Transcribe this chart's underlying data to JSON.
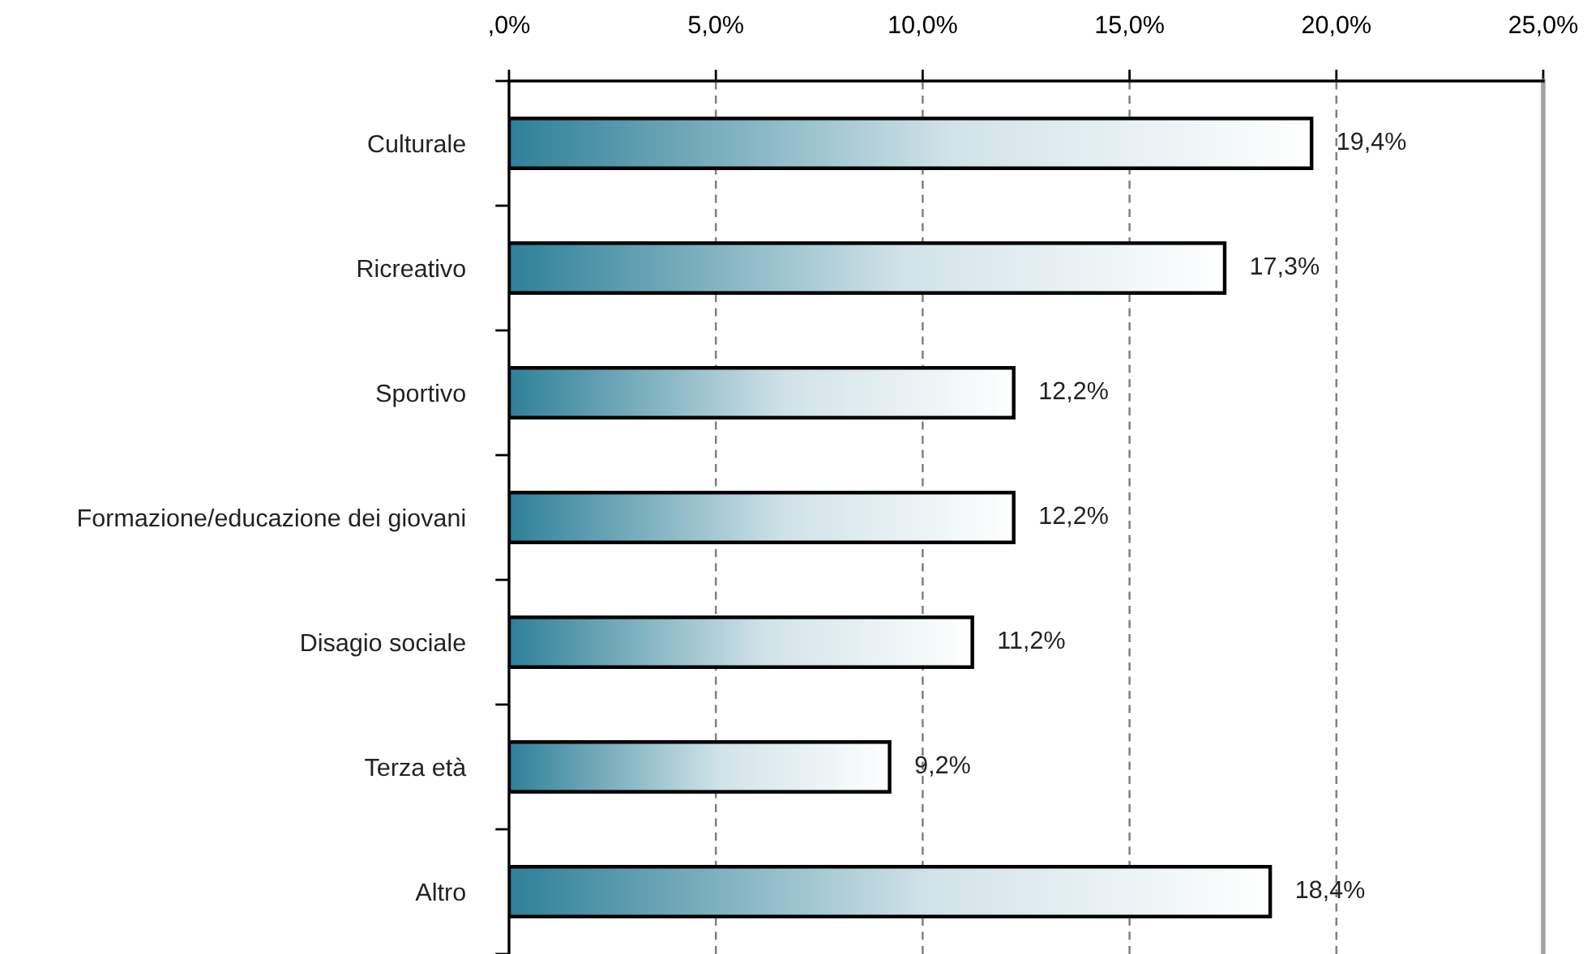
{
  "chart_data": {
    "type": "bar",
    "orientation": "horizontal",
    "categories": [
      "Culturale",
      "Ricreativo",
      "Sportivo",
      "Formazione/educazione dei giovani",
      "Disagio sociale",
      "Terza età",
      "Altro"
    ],
    "values": [
      19.4,
      17.3,
      12.2,
      12.2,
      11.2,
      9.2,
      18.4
    ],
    "value_labels": [
      "19,4%",
      "17,3%",
      "12,2%",
      "12,2%",
      "11,2%",
      "9,2%",
      "18,4%"
    ],
    "color": "#2f8199",
    "xlim": [
      0,
      25
    ],
    "xticks": [
      {
        "value": 0,
        "label": ",0%"
      },
      {
        "value": 5,
        "label": "5,0%"
      },
      {
        "value": 10,
        "label": "10,0%"
      },
      {
        "value": 15,
        "label": "15,0%"
      },
      {
        "value": 20,
        "label": "20,0%"
      },
      {
        "value": 25,
        "label": "25,0%"
      }
    ],
    "grid": "x"
  }
}
